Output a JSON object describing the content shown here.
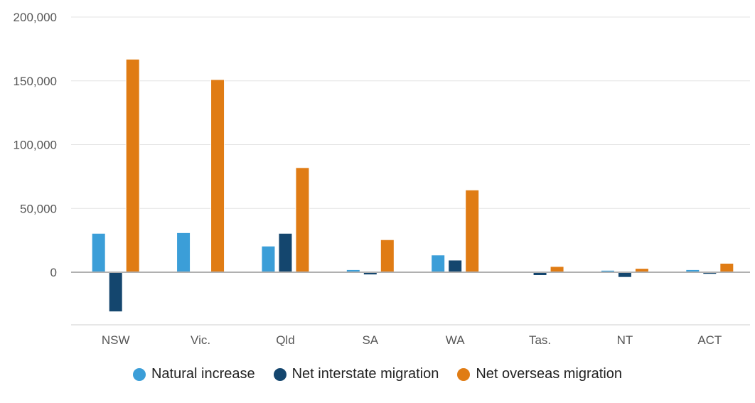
{
  "chart_data": {
    "type": "bar",
    "categories": [
      "NSW",
      "Vic.",
      "Qld",
      "SA",
      "WA",
      "Tas.",
      "NT",
      "ACT"
    ],
    "series": [
      {
        "name": "Natural increase",
        "color": "#3b9ed8",
        "values": [
          30500,
          31000,
          20500,
          2000,
          13500,
          0,
          1500,
          2000
        ]
      },
      {
        "name": "Net interstate migration",
        "color": "#14466e",
        "values": [
          -31000,
          0,
          30500,
          -2000,
          9500,
          -2500,
          -4000,
          -1500
        ]
      },
      {
        "name": "Net overseas migration",
        "color": "#e07c14",
        "values": [
          167000,
          151000,
          82000,
          25500,
          64500,
          4500,
          3000,
          7000
        ]
      }
    ],
    "y_ticks": [
      "0",
      "50,000",
      "100,000",
      "150,000",
      "200,000"
    ],
    "y_tick_values": [
      0,
      50000,
      100000,
      150000,
      200000
    ],
    "ylim": [
      -40000,
      200000
    ],
    "grid": true,
    "legend_position": "bottom"
  }
}
